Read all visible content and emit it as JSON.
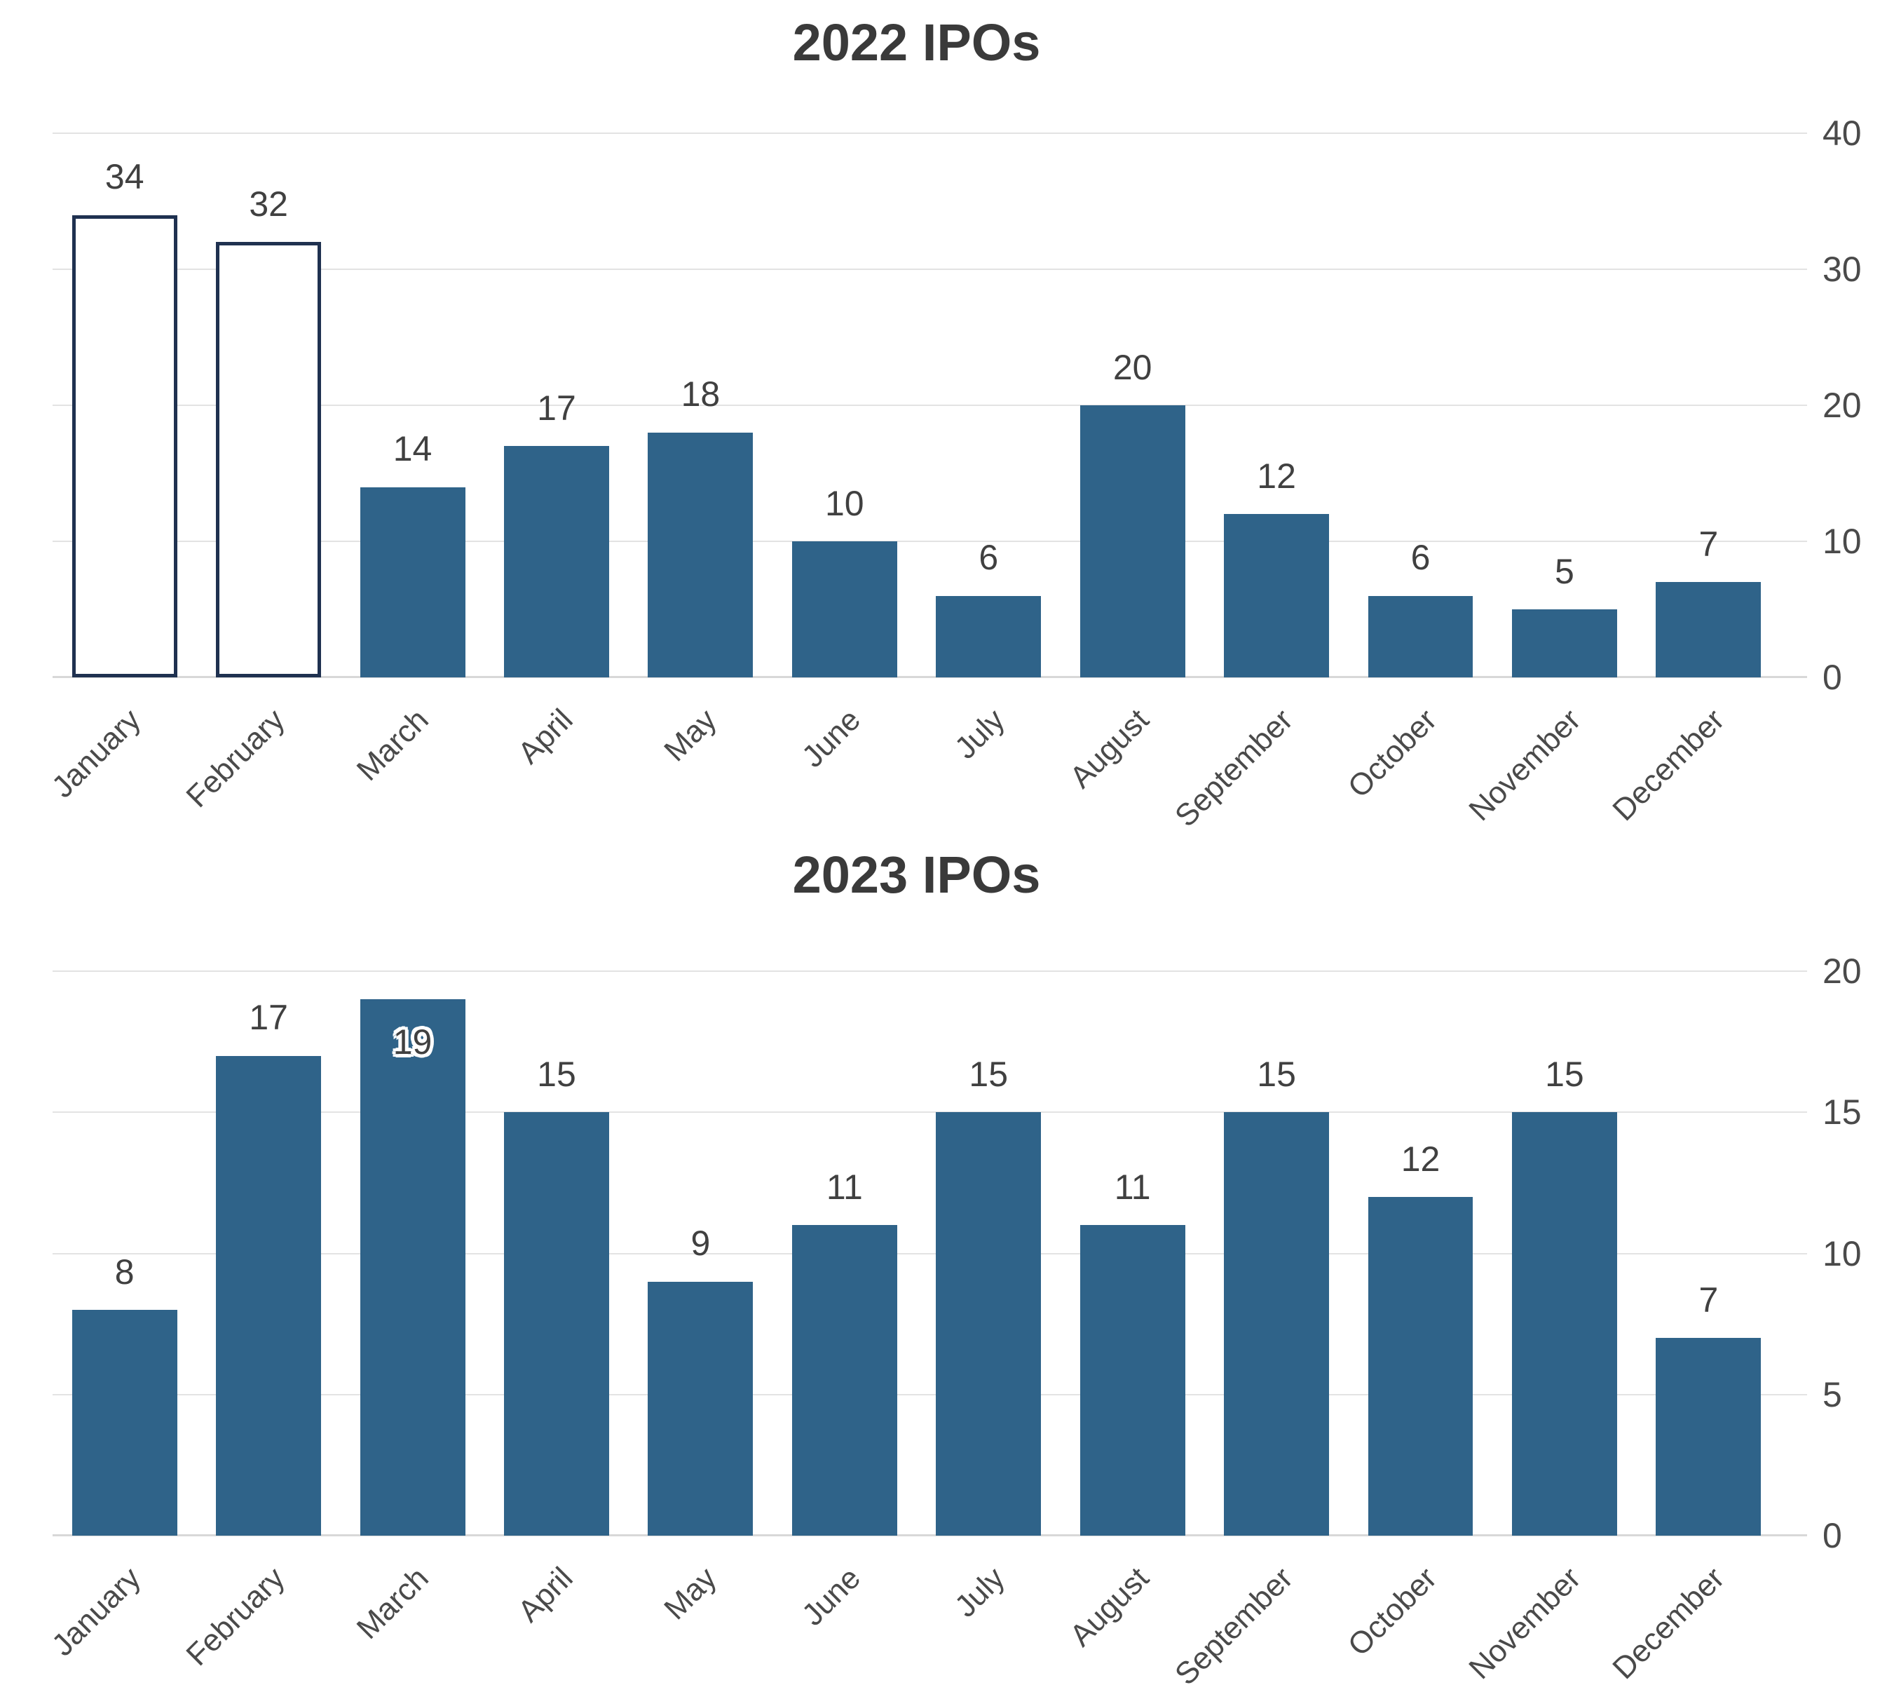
{
  "chart_data": [
    {
      "type": "bar",
      "title": "2022 IPOs",
      "categories": [
        "January",
        "February",
        "March",
        "April",
        "May",
        "June",
        "July",
        "August",
        "September",
        "October",
        "November",
        "December"
      ],
      "values": [
        34,
        32,
        14,
        17,
        18,
        10,
        6,
        20,
        12,
        6,
        5,
        7
      ],
      "ylim": [
        0,
        40
      ],
      "yticks": [
        40,
        30,
        20,
        10,
        0
      ],
      "xlabel": "",
      "ylabel": "",
      "grid": true,
      "axis_side": "right",
      "legend": null,
      "hollow_bar_indices": [
        0,
        1
      ],
      "inside_label_indices": []
    },
    {
      "type": "bar",
      "title": "2023 IPOs",
      "categories": [
        "January",
        "February",
        "March",
        "April",
        "May",
        "June",
        "July",
        "August",
        "September",
        "October",
        "November",
        "December"
      ],
      "values": [
        8,
        17,
        19,
        15,
        9,
        11,
        15,
        11,
        15,
        12,
        15,
        7
      ],
      "ylim": [
        0,
        20
      ],
      "yticks": [
        20,
        15,
        10,
        5,
        0
      ],
      "xlabel": "",
      "ylabel": "",
      "grid": true,
      "axis_side": "right",
      "legend": null,
      "hollow_bar_indices": [],
      "inside_label_indices": [
        2
      ]
    }
  ],
  "colors": {
    "bar_fill": "#2F6389",
    "hollow_fill": "#FFFFFF",
    "hollow_border": "#1F3150",
    "gridline": "#E3E3E3",
    "baseline": "#D8D8D8",
    "title_text": "#3A3A3A",
    "label_text": "#404040",
    "tick_text": "#4A4A4A"
  }
}
